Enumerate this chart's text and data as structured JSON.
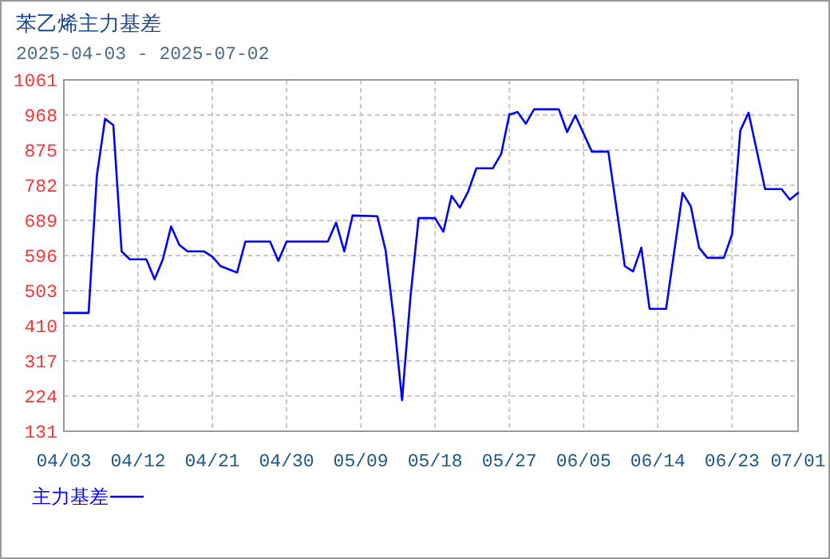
{
  "chart_data": {
    "type": "line",
    "title": "苯乙烯主力基差",
    "subtitle": "2025-04-03 - 2025-07-02",
    "x": [
      "2025-04-03",
      "2025-04-06",
      "2025-04-07",
      "2025-04-08",
      "2025-04-09",
      "2025-04-10",
      "2025-04-11",
      "2025-04-13",
      "2025-04-14",
      "2025-04-15",
      "2025-04-16",
      "2025-04-17",
      "2025-04-18",
      "2025-04-20",
      "2025-04-21",
      "2025-04-22",
      "2025-04-24",
      "2025-04-25",
      "2025-04-28",
      "2025-04-29",
      "2025-04-30",
      "2025-05-05",
      "2025-05-06",
      "2025-05-07",
      "2025-05-08",
      "2025-05-11",
      "2025-05-12",
      "2025-05-13",
      "2025-05-14",
      "2025-05-15",
      "2025-05-16",
      "2025-05-18",
      "2025-05-19",
      "2025-05-20",
      "2025-05-21",
      "2025-05-22",
      "2025-05-23",
      "2025-05-25",
      "2025-05-26",
      "2025-05-27",
      "2025-05-28",
      "2025-05-29",
      "2025-05-30",
      "2025-06-02",
      "2025-06-03",
      "2025-06-04",
      "2025-06-06",
      "2025-06-08",
      "2025-06-10",
      "2025-06-11",
      "2025-06-12",
      "2025-06-13",
      "2025-06-15",
      "2025-06-17",
      "2025-06-18",
      "2025-06-19",
      "2025-06-20",
      "2025-06-22",
      "2025-06-23",
      "2025-06-24",
      "2025-06-25",
      "2025-06-27",
      "2025-06-29",
      "2025-06-30",
      "2025-07-01"
    ],
    "series": [
      {
        "name": "主力基差",
        "color": "#0000ff",
        "values": [
          444,
          444,
          807,
          958,
          941,
          607,
          586,
          586,
          533,
          586,
          673,
          624,
          607,
          607,
          593,
          568,
          551,
          633,
          633,
          582,
          633,
          633,
          683,
          607,
          702,
          700,
          610,
          427,
          213,
          483,
          695,
          695,
          659,
          754,
          723,
          765,
          827,
          827,
          864,
          969,
          976,
          945,
          983,
          983,
          923,
          967,
          871,
          871,
          568,
          554,
          617,
          455,
          455,
          762,
          726,
          617,
          590,
          590,
          652,
          927,
          974,
          772,
          772,
          744,
          762
        ]
      }
    ],
    "xlim": [
      "2025-04-03",
      "2025-07-01"
    ],
    "xticks": [
      {
        "value": "2025-04-03",
        "label": "04/03"
      },
      {
        "value": "2025-04-12",
        "label": "04/12"
      },
      {
        "value": "2025-04-21",
        "label": "04/21"
      },
      {
        "value": "2025-04-30",
        "label": "04/30"
      },
      {
        "value": "2025-05-09",
        "label": "05/09"
      },
      {
        "value": "2025-05-18",
        "label": "05/18"
      },
      {
        "value": "2025-05-27",
        "label": "05/27"
      },
      {
        "value": "2025-06-05",
        "label": "06/05"
      },
      {
        "value": "2025-06-14",
        "label": "06/14"
      },
      {
        "value": "2025-06-23",
        "label": "06/23"
      },
      {
        "value": "2025-07-01",
        "label": "07/01"
      }
    ],
    "ylim": [
      131,
      1061
    ],
    "yticks": [
      131,
      224,
      317,
      410,
      503,
      596,
      689,
      782,
      875,
      968,
      1061
    ],
    "grid": true,
    "legend": "bottom left",
    "line_style": "solid",
    "marker": "none"
  }
}
